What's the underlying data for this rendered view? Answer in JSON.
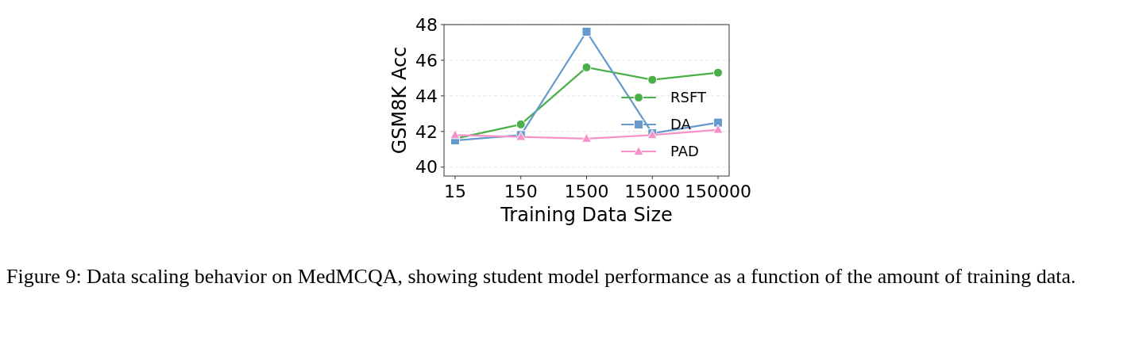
{
  "chart_data": {
    "type": "line",
    "xlabel": "Training Data Size",
    "ylabel": "GSM8K Acc",
    "categories": [
      "15",
      "150",
      "1500",
      "15000",
      "150000"
    ],
    "ylim": [
      39.5,
      48
    ],
    "yticks": [
      40,
      42,
      44,
      46,
      48
    ],
    "grid": "y",
    "legend": "right",
    "series": [
      {
        "name": "RSFT",
        "color": "#4daf4a",
        "marker": "circle",
        "values": [
          41.6,
          42.4,
          45.6,
          44.9,
          45.3
        ]
      },
      {
        "name": "DA",
        "color": "#6699cc",
        "marker": "square",
        "values": [
          41.5,
          41.8,
          47.6,
          41.9,
          42.5
        ]
      },
      {
        "name": "PAD",
        "color": "#f792c8",
        "marker": "triangle",
        "values": [
          41.8,
          41.7,
          41.6,
          41.8,
          42.1
        ]
      }
    ],
    "annotations": [
      "Figure 9: Data scaling behavior on MedMCQA, showing student model performance as a function of the amount of training data."
    ]
  }
}
